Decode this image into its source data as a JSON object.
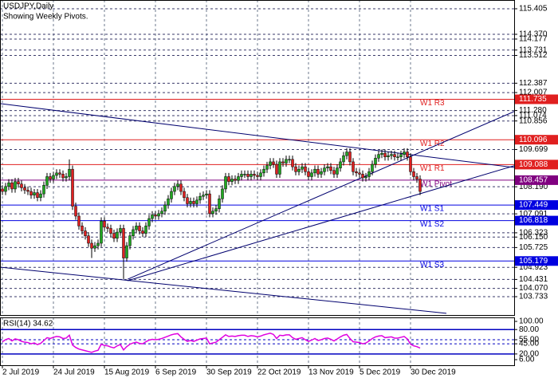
{
  "chart_data": {
    "type": "candlestick",
    "title": "USDJPY,Daily",
    "subtitle": "Showing Weekly Pivots.",
    "xlim": [
      -0.75,
      160.5
    ],
    "xticks": [
      {
        "value": 0,
        "label": "2 Jul 2019"
      },
      {
        "value": 16,
        "label": "24 Jul 2019"
      },
      {
        "value": 32,
        "label": "15 Aug 2019"
      },
      {
        "value": 48,
        "label": "6 Sep 2019"
      },
      {
        "value": 64,
        "label": "30 Sep 2019"
      },
      {
        "value": 80,
        "label": "22 Oct 2019"
      },
      {
        "value": 96,
        "label": "13 Nov 2019"
      },
      {
        "value": 112,
        "label": "5 Dec 2019"
      },
      {
        "value": 128,
        "label": "30 Dec 2019"
      }
    ],
    "ylim": [
      102.99,
      115.76
    ],
    "yticks": [
      115.405,
      {
        "value": 114.37,
        "label": "114.370"
      },
      114.177,
      113.731,
      113.512,
      112.387,
      112.007,
      {
        "value": 111.28,
        "label": "111.280"
      },
      111.074,
      110.856,
      109.699,
      {
        "value": 108.19,
        "label": "108.190"
      },
      107.091,
      106.323,
      {
        "value": 106.15,
        "label": "106.150"
      },
      105.725,
      104.923,
      104.431,
      {
        "value": 104.07,
        "label": "104.070"
      },
      103.733
    ],
    "grid": true,
    "up_color": "#1fa81f",
    "down_color": "#e02020",
    "candles": [
      [
        108.1,
        108.25,
        107.85,
        108.0
      ],
      [
        108.0,
        108.35,
        107.85,
        108.2
      ],
      [
        108.2,
        108.5,
        108.05,
        108.35
      ],
      [
        108.35,
        108.5,
        107.95,
        108.1
      ],
      [
        108.1,
        108.55,
        107.95,
        108.4
      ],
      [
        108.4,
        108.55,
        108.15,
        108.3
      ],
      [
        108.3,
        108.45,
        108.0,
        108.15
      ],
      [
        108.15,
        108.3,
        107.9,
        108.05
      ],
      [
        108.05,
        108.2,
        107.85,
        108.0
      ],
      [
        108.0,
        108.15,
        107.7,
        107.85
      ],
      [
        107.85,
        108.1,
        107.7,
        107.95
      ],
      [
        107.95,
        108.1,
        107.6,
        107.75
      ],
      [
        107.75,
        108.05,
        107.6,
        107.9
      ],
      [
        107.9,
        108.4,
        107.75,
        108.25
      ],
      [
        108.25,
        108.75,
        108.1,
        108.6
      ],
      [
        108.6,
        108.75,
        108.35,
        108.5
      ],
      [
        108.5,
        108.8,
        108.35,
        108.65
      ],
      [
        108.65,
        108.9,
        108.5,
        108.75
      ],
      [
        108.75,
        108.9,
        108.55,
        108.7
      ],
      [
        108.7,
        108.85,
        108.4,
        108.55
      ],
      [
        108.55,
        108.75,
        108.4,
        108.6
      ],
      [
        108.6,
        109.3,
        108.45,
        108.9
      ],
      [
        108.9,
        109.05,
        107.25,
        107.4
      ],
      [
        107.4,
        107.55,
        106.85,
        107.0
      ],
      [
        107.0,
        107.15,
        106.45,
        106.6
      ],
      [
        106.6,
        106.75,
        106.25,
        106.4
      ],
      [
        106.4,
        106.55,
        106.05,
        106.2
      ],
      [
        106.2,
        106.35,
        105.75,
        105.9
      ],
      [
        105.9,
        106.05,
        105.3,
        105.7
      ],
      [
        105.7,
        105.95,
        105.55,
        105.8
      ],
      [
        105.8,
        106.05,
        105.65,
        105.9
      ],
      [
        105.9,
        106.95,
        105.75,
        106.8
      ],
      [
        106.8,
        106.95,
        106.4,
        106.55
      ],
      [
        106.55,
        106.7,
        106.35,
        106.5
      ],
      [
        106.5,
        106.65,
        106.15,
        106.3
      ],
      [
        106.3,
        106.45,
        105.95,
        106.1
      ],
      [
        106.1,
        106.5,
        105.95,
        106.35
      ],
      [
        106.35,
        106.65,
        106.2,
        106.5
      ],
      [
        106.5,
        106.65,
        104.45,
        105.3
      ],
      [
        105.3,
        105.95,
        105.15,
        105.8
      ],
      [
        105.8,
        106.35,
        105.65,
        106.2
      ],
      [
        106.2,
        106.6,
        106.05,
        106.45
      ],
      [
        106.45,
        106.75,
        106.3,
        106.6
      ],
      [
        106.6,
        106.75,
        106.25,
        106.4
      ],
      [
        106.4,
        106.55,
        106.15,
        106.3
      ],
      [
        106.3,
        106.75,
        106.15,
        106.6
      ],
      [
        106.6,
        107.05,
        106.45,
        106.9
      ],
      [
        106.9,
        107.2,
        106.75,
        107.05
      ],
      [
        107.05,
        107.2,
        106.85,
        107.0
      ],
      [
        107.0,
        107.25,
        106.85,
        107.1
      ],
      [
        107.1,
        107.35,
        106.95,
        107.2
      ],
      [
        107.2,
        107.6,
        107.05,
        107.45
      ],
      [
        107.45,
        107.85,
        107.3,
        107.7
      ],
      [
        107.7,
        108.15,
        107.55,
        108.0
      ],
      [
        108.0,
        108.35,
        107.85,
        108.2
      ],
      [
        108.2,
        108.45,
        108.05,
        108.3
      ],
      [
        108.3,
        108.45,
        107.85,
        108.0
      ],
      [
        108.0,
        108.15,
        107.6,
        107.75
      ],
      [
        107.75,
        107.9,
        107.35,
        107.5
      ],
      [
        107.5,
        107.75,
        107.35,
        107.6
      ],
      [
        107.6,
        107.75,
        107.35,
        107.5
      ],
      [
        107.5,
        107.8,
        107.35,
        107.65
      ],
      [
        107.65,
        107.95,
        107.5,
        107.8
      ],
      [
        107.8,
        108.0,
        107.65,
        107.85
      ],
      [
        107.85,
        108.05,
        107.7,
        107.9
      ],
      [
        107.9,
        108.05,
        106.95,
        107.1
      ],
      [
        107.1,
        107.35,
        106.95,
        107.2
      ],
      [
        107.2,
        107.45,
        107.05,
        107.3
      ],
      [
        107.3,
        107.85,
        107.15,
        107.7
      ],
      [
        107.7,
        108.25,
        107.55,
        108.1
      ],
      [
        108.1,
        108.75,
        107.95,
        108.6
      ],
      [
        108.6,
        108.75,
        108.25,
        108.4
      ],
      [
        108.4,
        108.65,
        108.25,
        108.5
      ],
      [
        108.5,
        108.65,
        108.3,
        108.45
      ],
      [
        108.45,
        108.75,
        108.3,
        108.6
      ],
      [
        108.6,
        108.85,
        108.45,
        108.7
      ],
      [
        108.7,
        108.85,
        108.55,
        108.7
      ],
      [
        108.7,
        108.85,
        108.45,
        108.6
      ],
      [
        108.6,
        108.85,
        108.45,
        108.7
      ],
      [
        108.7,
        108.85,
        108.5,
        108.65
      ],
      [
        108.65,
        108.8,
        108.45,
        108.6
      ],
      [
        108.6,
        108.9,
        108.45,
        108.75
      ],
      [
        108.75,
        109.05,
        108.6,
        108.9
      ],
      [
        108.9,
        109.2,
        108.75,
        109.05
      ],
      [
        109.05,
        109.35,
        108.9,
        109.2
      ],
      [
        109.2,
        109.35,
        108.95,
        109.1
      ],
      [
        109.1,
        109.25,
        108.55,
        108.7
      ],
      [
        108.7,
        109.35,
        108.55,
        109.2
      ],
      [
        109.2,
        109.35,
        109.0,
        109.15
      ],
      [
        109.15,
        109.45,
        109.0,
        109.3
      ],
      [
        109.3,
        109.45,
        109.15,
        109.3
      ],
      [
        109.3,
        109.45,
        108.85,
        109.0
      ],
      [
        109.0,
        109.15,
        108.65,
        108.8
      ],
      [
        108.8,
        109.05,
        108.65,
        108.9
      ],
      [
        108.9,
        109.15,
        108.75,
        109.0
      ],
      [
        109.0,
        109.15,
        108.65,
        108.8
      ],
      [
        108.8,
        108.95,
        108.45,
        108.6
      ],
      [
        108.6,
        108.9,
        108.45,
        108.75
      ],
      [
        108.75,
        109.05,
        108.6,
        108.9
      ],
      [
        108.9,
        109.05,
        108.55,
        108.7
      ],
      [
        108.7,
        108.95,
        108.55,
        108.8
      ],
      [
        108.8,
        109.1,
        108.65,
        108.95
      ],
      [
        108.95,
        109.15,
        108.8,
        109.0
      ],
      [
        109.0,
        109.15,
        108.7,
        108.85
      ],
      [
        108.85,
        109.0,
        108.55,
        108.7
      ],
      [
        108.7,
        109.1,
        108.55,
        108.95
      ],
      [
        108.95,
        109.35,
        108.8,
        109.2
      ],
      [
        109.2,
        109.6,
        109.05,
        109.45
      ],
      [
        109.45,
        109.75,
        109.3,
        109.6
      ],
      [
        109.6,
        109.75,
        109.05,
        109.2
      ],
      [
        109.2,
        109.35,
        108.65,
        108.8
      ],
      [
        108.8,
        108.95,
        108.6,
        108.75
      ],
      [
        108.75,
        108.9,
        108.55,
        108.7
      ],
      [
        108.7,
        108.85,
        108.4,
        108.55
      ],
      [
        108.55,
        108.75,
        108.4,
        108.6
      ],
      [
        108.6,
        108.95,
        108.45,
        108.8
      ],
      [
        108.8,
        109.25,
        108.65,
        109.1
      ],
      [
        109.1,
        109.5,
        108.95,
        109.35
      ],
      [
        109.35,
        109.65,
        109.2,
        109.5
      ],
      [
        109.5,
        109.7,
        109.35,
        109.55
      ],
      [
        109.55,
        109.7,
        109.25,
        109.4
      ],
      [
        109.4,
        109.6,
        109.25,
        109.45
      ],
      [
        109.45,
        109.65,
        109.3,
        109.5
      ],
      [
        109.5,
        109.65,
        109.25,
        109.4
      ],
      [
        109.4,
        109.55,
        109.25,
        109.4
      ],
      [
        109.4,
        109.65,
        109.25,
        109.5
      ],
      [
        109.5,
        109.75,
        109.35,
        109.6
      ],
      [
        109.6,
        109.75,
        109.25,
        109.4
      ],
      [
        109.4,
        109.55,
        108.65,
        108.8
      ],
      [
        108.8,
        108.95,
        108.45,
        108.6
      ],
      [
        108.6,
        108.75,
        108.35,
        108.5
      ],
      [
        108.5,
        108.65,
        107.85,
        108.0
      ]
    ],
    "levels": [
      {
        "name": "W1 R3",
        "value": 111.735,
        "color": "#e02020"
      },
      {
        "name": "W1 R2",
        "value": 110.096,
        "color": "#e02020"
      },
      {
        "name": "W1 R1",
        "value": 109.088,
        "color": "#e02020"
      },
      {
        "name": "W1 Pivot",
        "value": 108.457,
        "color": "#800080"
      },
      {
        "name": "W1 S1",
        "value": 107.449,
        "color": "#0000e0"
      },
      {
        "name": "W1 S2",
        "value": 106.818,
        "color": "#0000e0"
      },
      {
        "name": "W1 S3",
        "value": 105.179,
        "color": "#0000e0"
      }
    ],
    "trendline_color": "#00006e",
    "trendlines": [
      {
        "x": [
          -0.75,
          160.5
        ],
        "y": [
          111.56,
          108.97
        ]
      },
      {
        "x": [
          39.25,
          160.5
        ],
        "y": [
          104.44,
          111.24
        ]
      },
      {
        "x": [
          39.25,
          160.5
        ],
        "y": [
          104.38,
          109.04
        ]
      },
      {
        "x": [
          -0.75,
          139.25
        ],
        "y": [
          104.93,
          103.06
        ]
      }
    ],
    "rsi": {
      "title": "RSI(14) 34.62",
      "color": "#e000e0",
      "ylim": [
        -7.7,
        109.8
      ],
      "yticks": [
        {
          "value": 100,
          "label": "100.00",
          "line": "none"
        },
        {
          "value": 80,
          "label": "80.00",
          "line": "solid"
        },
        {
          "value": 55,
          "label": "55.00",
          "line": "dash"
        },
        {
          "value": 45,
          "label": "45.00",
          "line": "dash"
        },
        {
          "value": 20,
          "label": "20.00",
          "line": "solid"
        },
        {
          "value": 6,
          "label": "6.00",
          "line": "none"
        }
      ],
      "values": [
        50,
        55,
        58,
        52,
        57,
        55,
        51,
        49,
        48,
        45,
        47,
        43,
        46,
        53,
        60,
        58,
        61,
        63,
        62,
        58,
        59,
        66,
        42,
        36,
        32,
        30,
        28,
        26,
        24,
        27,
        29,
        44,
        41,
        40,
        37,
        35,
        40,
        43,
        30,
        38,
        44,
        47,
        49,
        46,
        45,
        50,
        54,
        56,
        55,
        56,
        58,
        61,
        64,
        67,
        69,
        70,
        62,
        56,
        51,
        53,
        51,
        54,
        57,
        58,
        59,
        45,
        47,
        49,
        55,
        61,
        67,
        63,
        64,
        63,
        65,
        66,
        66,
        63,
        65,
        64,
        62,
        64,
        67,
        69,
        71,
        68,
        58,
        66,
        65,
        67,
        67,
        60,
        56,
        58,
        60,
        55,
        51,
        54,
        58,
        53,
        55,
        58,
        59,
        56,
        52,
        57,
        62,
        66,
        68,
        58,
        50,
        49,
        48,
        45,
        47,
        52,
        58,
        62,
        64,
        65,
        60,
        61,
        62,
        59,
        59,
        61,
        63,
        57,
        44,
        40,
        38,
        34.62
      ]
    }
  }
}
